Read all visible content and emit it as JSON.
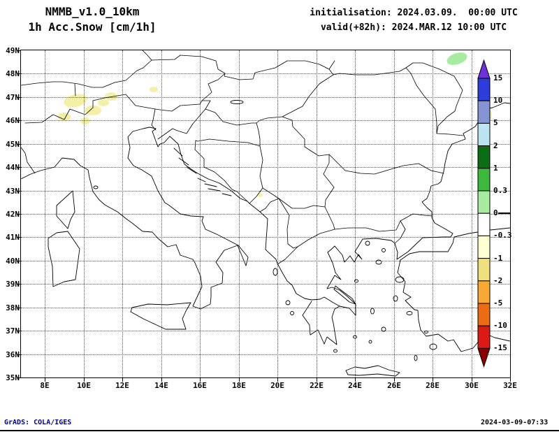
{
  "header": {
    "line1": "NMMB_v1.0_10km",
    "line2": "1h Acc.Snow [cm/1h]",
    "init": "initialisation: 2024.03.09.  00:00 UTC",
    "valid": "valid(+82h): 2024.MAR.12 10:00 UTC"
  },
  "axes": {
    "lat_labels": [
      "49N",
      "48N",
      "47N",
      "46N",
      "45N",
      "44N",
      "43N",
      "42N",
      "41N",
      "40N",
      "39N",
      "38N",
      "37N",
      "36N",
      "35N"
    ],
    "lon_labels": [
      "8E",
      "10E",
      "12E",
      "14E",
      "16E",
      "18E",
      "20E",
      "22E",
      "24E",
      "26E",
      "28E",
      "30E",
      "32E"
    ]
  },
  "colorbar": {
    "unit_levels": [
      "15",
      "10",
      "5",
      "2",
      "1",
      "0.3",
      "0",
      "-0.3",
      "-1",
      "-2",
      "-5",
      "-10",
      "-15"
    ],
    "top_arrow_color": "#7030d8",
    "bottom_arrow_color": "#8a0000",
    "segment_colors": [
      "#2e3cdc",
      "#8494d4",
      "#bce4f4",
      "#0c6e14",
      "#3cb83c",
      "#a8eca0",
      "#ffffff",
      "#ffffd2",
      "#f0e080",
      "#f8a834",
      "#ec6c14",
      "#dc1a14"
    ]
  },
  "patch_colors": {
    "pale_yellow": "#f5f0a8",
    "light_green": "#a8eca0"
  },
  "footer": {
    "left": "GrADS: COLA/IGES",
    "right": "2024-03-09-07:33"
  },
  "chart_data": {
    "type": "map",
    "title": "NMMB_v1.0_10km 1h Acc.Snow [cm/1h]",
    "initialisation": "2024.03.09. 00:00 UTC",
    "valid": "(+82h) 2024.MAR.12 10:00 UTC",
    "units": "cm/1h",
    "lon_range_deg_east": [
      6.8,
      32
    ],
    "lat_range_deg_north": [
      35,
      49
    ],
    "grid_step": {
      "lon_deg": 2,
      "lat_deg": 1
    },
    "region": "Italy, Adriatic, Balkans, Greece, Aegean, western Black Sea",
    "colorbar_levels": [
      15,
      10,
      5,
      2,
      1,
      0.3,
      0,
      -0.3,
      -1,
      -2,
      -5,
      -10,
      -15
    ],
    "shaded_features": [
      {
        "area": "Alps ~10-12.5E, 46-47.3N (several patches)",
        "value_class": "-1 to -0.3",
        "color": "pale-yellow"
      },
      {
        "area": "~13.5E, 47.3N (small patch)",
        "value_class": "-1 to -0.3",
        "color": "pale-yellow"
      },
      {
        "area": "~19E, 42.8N (small spot)",
        "value_class": "-1 to -0.3",
        "color": "pale-yellow"
      },
      {
        "area": "~30.5E, 46.3-47N (patches near right edge)",
        "value_class": "-1 to -0.3",
        "color": "pale-yellow"
      },
      {
        "area": "~29E, 48.6N (ellipse blob)",
        "value_class": "0 to 0.3",
        "color": "light-green"
      }
    ]
  }
}
